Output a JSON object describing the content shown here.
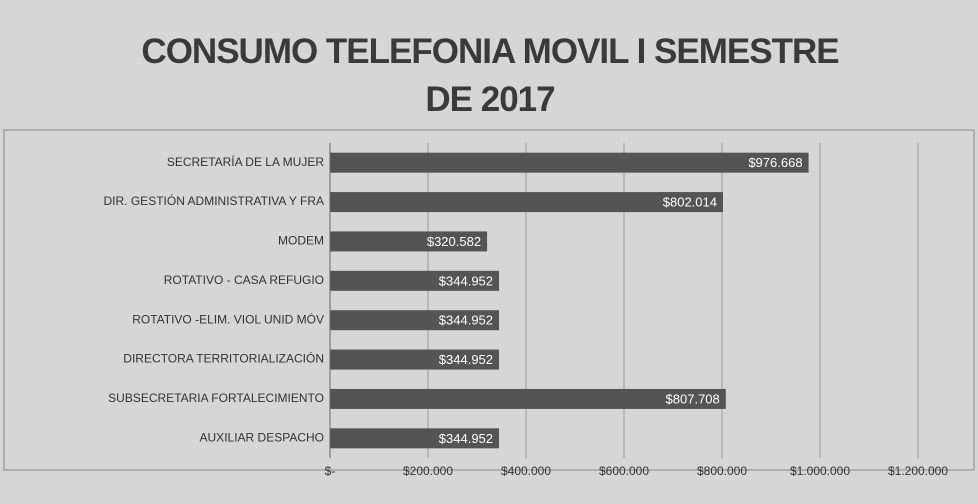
{
  "chart_data": {
    "type": "barh",
    "title": "CONSUMO TELEFONIA MOVIL I SEMESTRE DE 2017",
    "categories": [
      "SECRETARÍA DE LA MUJER",
      "DIR. GESTIÓN ADMINISTRATIVA Y FRA",
      "MODEM",
      "ROTATIVO - CASA REFUGIO",
      "ROTATIVO -ELIM. VIOL UNID MÓV",
      "DIRECTORA TERRITORIALIZACIÓN",
      "SUBSECRETARIA FORTALECIMIENTO",
      "AUXILIAR DESPACHO"
    ],
    "values": [
      976668,
      802014,
      320582,
      344952,
      344952,
      344952,
      807708,
      344952
    ],
    "value_labels": [
      "$976.668",
      "$802.014",
      "$320.582",
      "$344.952",
      "$344.952",
      "$344.952",
      "$807.708",
      "$344.952"
    ],
    "color": "#545454",
    "xlim": [
      0,
      1200000
    ],
    "xticks": [
      {
        "value": 0,
        "label": "$-"
      },
      {
        "value": 200000,
        "label": "$200.000"
      },
      {
        "value": 400000,
        "label": "$400.000"
      },
      {
        "value": 600000,
        "label": "$600.000"
      },
      {
        "value": 800000,
        "label": "$800.000"
      },
      {
        "value": 1000000,
        "label": "$1.000.000"
      },
      {
        "value": 1200000,
        "label": "$1.200.000"
      }
    ],
    "grid": true
  }
}
